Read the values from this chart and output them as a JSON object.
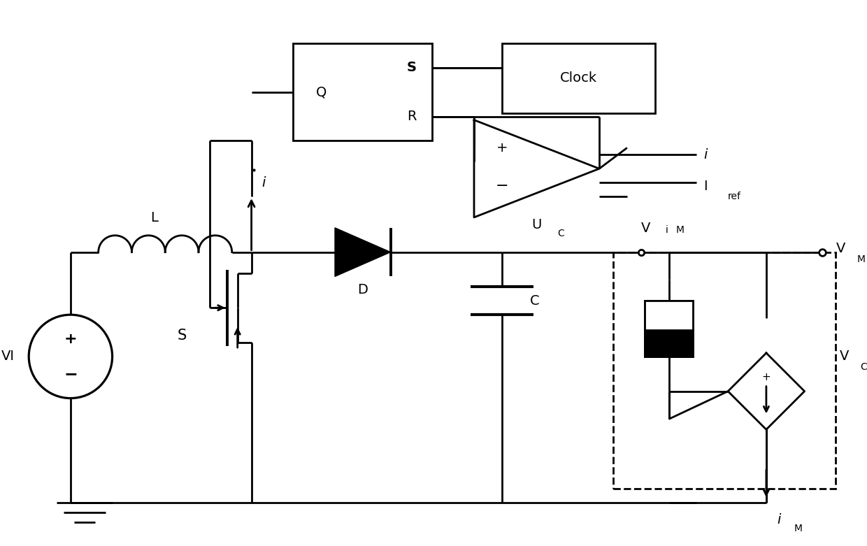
{
  "fig_width": 12.4,
  "fig_height": 7.81,
  "bg_color": "#ffffff",
  "lc": "#000000",
  "lw": 2.0,
  "fs": 14,
  "xlim": [
    0,
    124
  ],
  "ylim": [
    0,
    78
  ]
}
